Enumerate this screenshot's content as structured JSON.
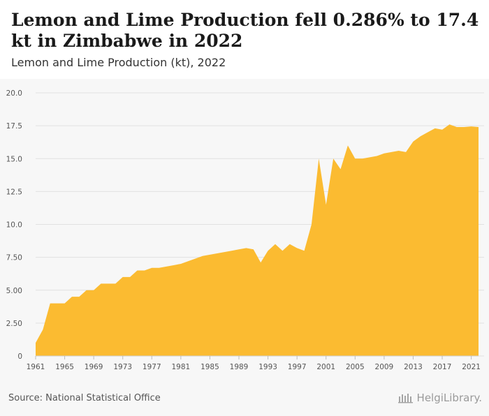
{
  "title": "Lemon and Lime Production fell 0.286% to 17.4 kt in Zimbabwe in 2022",
  "subtitle": "Lemon and Lime Production (kt), 2022",
  "source": "Source: National Statistical Office",
  "brand": "HelgiLibrary.",
  "colors": {
    "area": "#fbbb31",
    "grid": "#e1e1e1",
    "axis_text": "#555555"
  },
  "chart_data": {
    "type": "area",
    "x": [
      1961,
      1962,
      1963,
      1964,
      1965,
      1966,
      1967,
      1968,
      1969,
      1970,
      1971,
      1972,
      1973,
      1974,
      1975,
      1976,
      1977,
      1978,
      1979,
      1980,
      1981,
      1982,
      1983,
      1984,
      1985,
      1986,
      1987,
      1988,
      1989,
      1990,
      1991,
      1992,
      1993,
      1994,
      1995,
      1996,
      1997,
      1998,
      1999,
      2000,
      2001,
      2002,
      2003,
      2004,
      2005,
      2006,
      2007,
      2008,
      2009,
      2010,
      2011,
      2012,
      2013,
      2014,
      2015,
      2016,
      2017,
      2018,
      2019,
      2020,
      2021,
      2022
    ],
    "series": [
      {
        "values": [
          1.0,
          2.0,
          4.0,
          4.0,
          4.0,
          4.5,
          4.5,
          5.0,
          5.0,
          5.5,
          5.5,
          5.5,
          6.0,
          6.0,
          6.5,
          6.5,
          6.7,
          6.7,
          6.8,
          6.9,
          7.0,
          7.2,
          7.4,
          7.6,
          7.7,
          7.8,
          7.9,
          8.0,
          8.1,
          8.2,
          8.1,
          7.1,
          8.0,
          8.5,
          8.0,
          8.5,
          8.2,
          8.0,
          10.0,
          15.0,
          11.5,
          15.0,
          14.2,
          16.0,
          15.0,
          15.0,
          15.1,
          15.2,
          15.4,
          15.5,
          15.6,
          15.5,
          16.3,
          16.7,
          17.0,
          17.3,
          17.2,
          17.6,
          17.4,
          17.4,
          17.45,
          17.4
        ]
      }
    ],
    "x_ticks": [
      "1961",
      "1965",
      "1969",
      "1973",
      "1977",
      "1981",
      "1985",
      "1989",
      "1993",
      "1997",
      "2001",
      "2005",
      "2009",
      "2013",
      "2017",
      "2021"
    ],
    "y_ticks": [
      "0",
      "2.50",
      "5.00",
      "7.50",
      "10.0",
      "12.5",
      "15.0",
      "17.5",
      "20.0"
    ],
    "ylim": [
      0,
      20
    ],
    "xlim": [
      1961,
      2022
    ],
    "grid": true
  }
}
